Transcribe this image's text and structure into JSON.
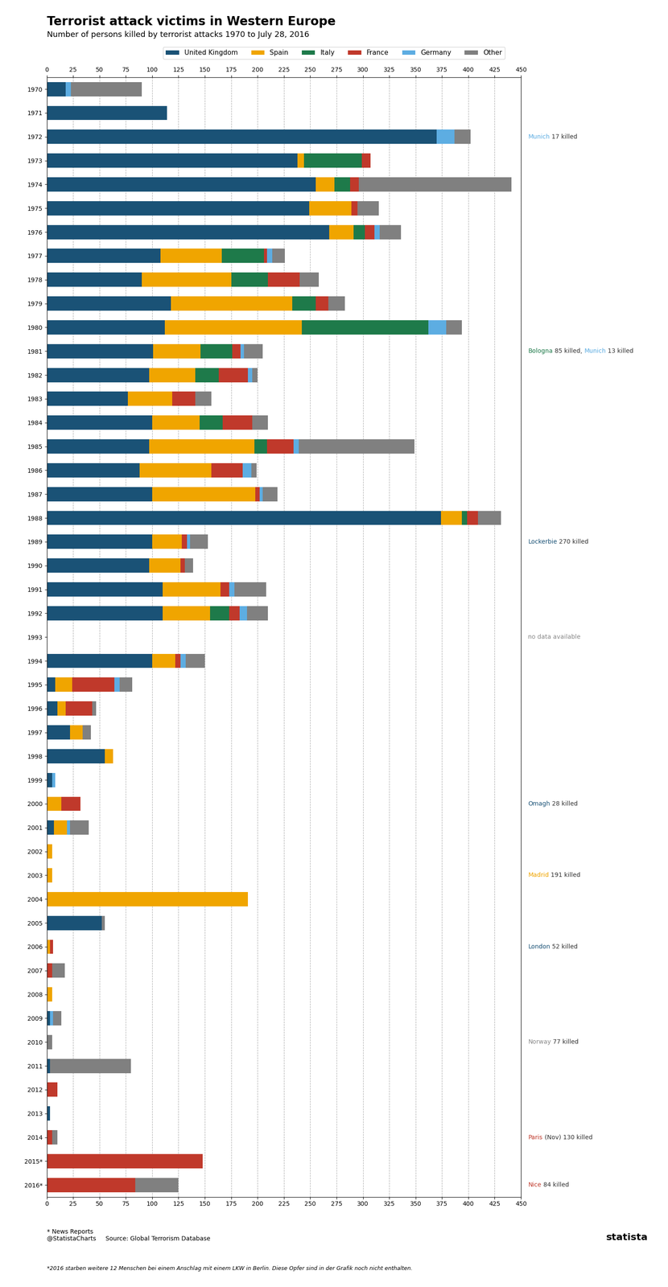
{
  "chart_data": {
    "type": "bar",
    "orientation": "horizontal",
    "stacked": true,
    "title": "Terrorist attack victims in Western Europe",
    "subtitle": "Number of persons killed by terrorist attacks 1970 to July 28, 2016",
    "categories": [
      "1970",
      "1971",
      "1972",
      "1973",
      "1974",
      "1975",
      "1976",
      "1977",
      "1978",
      "1979",
      "1980",
      "1981",
      "1982",
      "1983",
      "1984",
      "1985",
      "1986",
      "1987",
      "1988",
      "1989",
      "1990",
      "1991",
      "1992",
      "1993",
      "1994",
      "1995",
      "1996",
      "1997",
      "1998",
      "1999",
      "2000",
      "2001",
      "2002",
      "2003",
      "2004",
      "2005",
      "2006",
      "2007",
      "2008",
      "2009",
      "2010",
      "2011",
      "2012",
      "2013",
      "2014",
      "2015*",
      "2016*"
    ],
    "series": [
      {
        "name": "United Kingdom",
        "color": "#1a5276",
        "values": [
          18,
          114,
          370,
          238,
          255,
          249,
          268,
          108,
          90,
          118,
          112,
          101,
          97,
          77,
          100,
          97,
          88,
          100,
          374,
          100,
          97,
          110,
          110,
          0,
          100,
          8,
          10,
          22,
          55,
          5,
          0,
          7,
          0,
          0,
          0,
          52,
          0,
          0,
          0,
          3,
          0,
          3,
          0,
          3,
          0,
          0,
          0
        ]
      },
      {
        "name": "Spain",
        "color": "#f0a500",
        "values": [
          0,
          0,
          0,
          6,
          18,
          40,
          23,
          58,
          85,
          115,
          130,
          45,
          44,
          42,
          45,
          100,
          68,
          98,
          20,
          28,
          30,
          55,
          45,
          0,
          22,
          16,
          8,
          12,
          8,
          0,
          14,
          12,
          5,
          5,
          191,
          0,
          3,
          0,
          5,
          0,
          0,
          0,
          0,
          0,
          0,
          0,
          0
        ]
      },
      {
        "name": "Italy",
        "color": "#1e7a4a",
        "values": [
          0,
          0,
          0,
          55,
          15,
          0,
          11,
          40,
          35,
          22,
          120,
          30,
          22,
          0,
          22,
          12,
          0,
          0,
          5,
          0,
          0,
          0,
          18,
          0,
          0,
          0,
          0,
          0,
          0,
          0,
          0,
          0,
          0,
          0,
          0,
          0,
          0,
          0,
          0,
          0,
          0,
          0,
          0,
          0,
          0,
          0,
          0
        ]
      },
      {
        "name": "France",
        "color": "#c0392b",
        "values": [
          0,
          0,
          0,
          8,
          8,
          6,
          9,
          3,
          30,
          12,
          0,
          8,
          28,
          22,
          28,
          25,
          30,
          4,
          10,
          5,
          4,
          8,
          10,
          0,
          5,
          40,
          25,
          0,
          0,
          0,
          18,
          0,
          0,
          0,
          0,
          0,
          3,
          5,
          0,
          0,
          0,
          0,
          10,
          0,
          5,
          148,
          84
        ]
      },
      {
        "name": "Germany",
        "color": "#5dade2",
        "values": [
          5,
          0,
          17,
          0,
          0,
          0,
          5,
          5,
          0,
          0,
          17,
          3,
          4,
          0,
          0,
          5,
          8,
          3,
          0,
          3,
          0,
          5,
          7,
          0,
          5,
          5,
          0,
          0,
          0,
          3,
          0,
          3,
          0,
          0,
          0,
          0,
          0,
          0,
          0,
          3,
          0,
          0,
          0,
          0,
          0,
          0,
          0
        ]
      },
      {
        "name": "Other",
        "color": "#808080",
        "values": [
          67,
          0,
          15,
          0,
          145,
          20,
          20,
          12,
          18,
          16,
          15,
          18,
          5,
          15,
          15,
          110,
          5,
          14,
          22,
          17,
          8,
          30,
          20,
          0,
          18,
          12,
          4,
          8,
          0,
          0,
          0,
          18,
          0,
          0,
          0,
          3,
          0,
          12,
          0,
          8,
          5,
          77,
          0,
          0,
          5,
          0,
          41
        ]
      }
    ],
    "xlim": [
      0,
      450
    ],
    "xticks": [
      0,
      25,
      50,
      75,
      100,
      125,
      150,
      175,
      200,
      225,
      250,
      275,
      300,
      325,
      350,
      375,
      400,
      425,
      450
    ],
    "grid": true,
    "legend": "upper center",
    "annotations": [
      {
        "category": "1972",
        "parts": [
          {
            "text": "Munich",
            "color": "#5dade2"
          },
          {
            "text": " 17 killed",
            "color": "#333333"
          }
        ]
      },
      {
        "category": "1981",
        "parts": [
          {
            "text": "Bologna",
            "color": "#1e7a4a"
          },
          {
            "text": " 85 killed, ",
            "color": "#333333"
          },
          {
            "text": "Munich",
            "color": "#5dade2"
          },
          {
            "text": " 13 killed",
            "color": "#333333"
          }
        ]
      },
      {
        "category": "1989",
        "parts": [
          {
            "text": "Lockerbie",
            "color": "#1a5276"
          },
          {
            "text": " 270 killed",
            "color": "#333333"
          }
        ]
      },
      {
        "category": "1993",
        "parts": [
          {
            "text": "no data available",
            "color": "#888888"
          }
        ]
      },
      {
        "category": "2000",
        "parts": [
          {
            "text": "Omagh",
            "color": "#1a5276"
          },
          {
            "text": " 28 killed",
            "color": "#333333"
          }
        ]
      },
      {
        "category": "2003",
        "parts": [
          {
            "text": "Madrid",
            "color": "#f0a500"
          },
          {
            "text": " 191 killed",
            "color": "#333333"
          }
        ]
      },
      {
        "category": "2006",
        "parts": [
          {
            "text": "London",
            "color": "#1a5276"
          },
          {
            "text": " 52 killed",
            "color": "#333333"
          }
        ]
      },
      {
        "category": "2010",
        "parts": [
          {
            "text": "Norway",
            "color": "#888888"
          },
          {
            "text": " 77 killed",
            "color": "#333333"
          }
        ]
      },
      {
        "category": "2014",
        "parts": [
          {
            "text": "Paris",
            "color": "#c0392b"
          },
          {
            "text": " (Nov) 130 killed",
            "color": "#333333"
          }
        ]
      },
      {
        "category": "2016*",
        "parts": [
          {
            "text": "Nice",
            "color": "#c0392b"
          },
          {
            "text": " 84 killed",
            "color": "#333333"
          }
        ]
      }
    ],
    "footer": "* News Reports\n@StatistaCharts     Source: Global Terrorism Database",
    "footer_right": "statista",
    "footnote": "*2016 starben weitere 12 Menschen bei einem Anschlag mit einem LKW in Berlin. Diese Opfer sind in der Grafik noch nicht enthalten."
  }
}
